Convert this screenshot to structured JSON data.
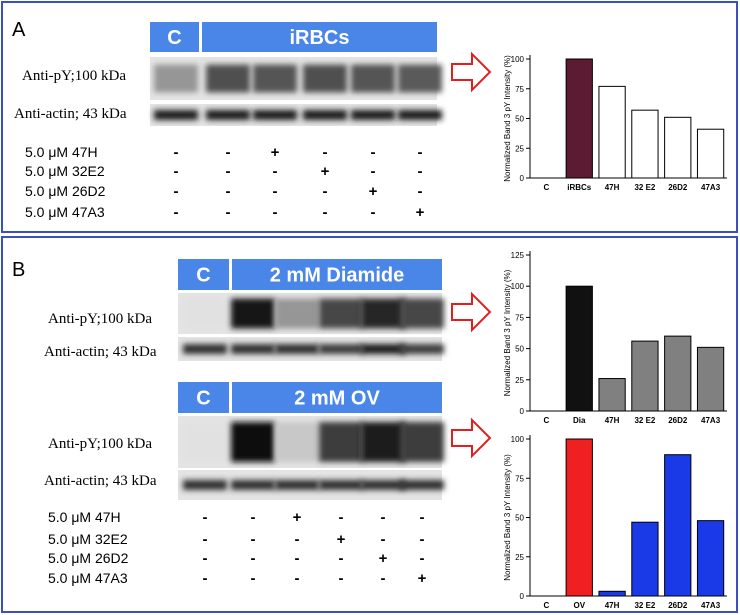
{
  "panel_a": {
    "label": "A",
    "header": [
      "C",
      "iRBCs"
    ],
    "blot_labels": [
      "Anti-pY;100 kDa",
      "Anti-actin; 43 kDa"
    ],
    "treatments": [
      {
        "label": "5.0 μM 47H",
        "marks": [
          "-",
          "-",
          "+",
          "-",
          "-",
          "-"
        ]
      },
      {
        "label": "5.0 μM 32E2",
        "marks": [
          "-",
          "-",
          "-",
          "+",
          "-",
          "-"
        ]
      },
      {
        "label": "5.0 μM 26D2",
        "marks": [
          "-",
          "-",
          "-",
          "-",
          "+",
          "-"
        ]
      },
      {
        "label": "5.0 μM 47A3",
        "marks": [
          "-",
          "-",
          "-",
          "-",
          "-",
          "+"
        ]
      }
    ]
  },
  "panel_b": {
    "label": "B",
    "blots": [
      {
        "header": [
          "C",
          "2 mM Diamide"
        ],
        "labels": [
          "Anti-pY;100 kDa",
          "Anti-actin; 43 kDa"
        ]
      },
      {
        "header": [
          "C",
          "2 mM OV"
        ],
        "labels": [
          "Anti-pY;100 kDa",
          "Anti-actin; 43 kDa"
        ]
      }
    ],
    "treatments": [
      {
        "label": "5.0 μM 47H",
        "marks": [
          "-",
          "-",
          "+",
          "-",
          "-",
          "-"
        ]
      },
      {
        "label": "5.0 μM 32E2",
        "marks": [
          "-",
          "-",
          "-",
          "+",
          "-",
          "-"
        ]
      },
      {
        "label": "5.0 μM 26D2",
        "marks": [
          "-",
          "-",
          "-",
          "-",
          "+",
          "-"
        ]
      },
      {
        "label": "5.0 μM 47A3",
        "marks": [
          "-",
          "-",
          "-",
          "-",
          "-",
          "+"
        ]
      }
    ]
  },
  "chart_data": [
    {
      "type": "bar",
      "y_label": "Normalized Band 3 pY Intensity (%)",
      "categories": [
        "C",
        "iRBCs",
        "47H",
        "32 E2",
        "26D2",
        "47A3"
      ],
      "values": [
        0,
        100,
        77,
        57,
        51,
        41
      ],
      "colors": [
        "#ffffff",
        "#5c1a33",
        "#ffffff",
        "#ffffff",
        "#ffffff",
        "#ffffff"
      ],
      "ylim": [
        0,
        100
      ],
      "yticks": [
        0,
        25,
        50,
        75,
        100
      ]
    },
    {
      "type": "bar",
      "y_label": "Normalized Band 3 pY Intensity (%)",
      "categories": [
        "C",
        "Dia",
        "47H",
        "32 E2",
        "26D2",
        "47A3"
      ],
      "values": [
        0,
        100,
        26,
        56,
        60,
        51
      ],
      "colors": [
        "#808080",
        "#111111",
        "#808080",
        "#808080",
        "#808080",
        "#808080"
      ],
      "ylim": [
        0,
        125
      ],
      "yticks": [
        0,
        25,
        50,
        75,
        100,
        125
      ]
    },
    {
      "type": "bar",
      "y_label": "Normalized Band 3 pY Intensity (%)",
      "categories": [
        "C",
        "OV",
        "47H",
        "32 E2",
        "26D2",
        "47A3"
      ],
      "values": [
        0,
        100,
        3,
        47,
        90,
        48
      ],
      "colors": [
        "#1a3ae8",
        "#f02020",
        "#1a3ae8",
        "#1a3ae8",
        "#1a3ae8",
        "#1a3ae8"
      ],
      "ylim": [
        0,
        100
      ],
      "yticks": [
        0,
        25,
        50,
        75,
        100
      ]
    }
  ]
}
